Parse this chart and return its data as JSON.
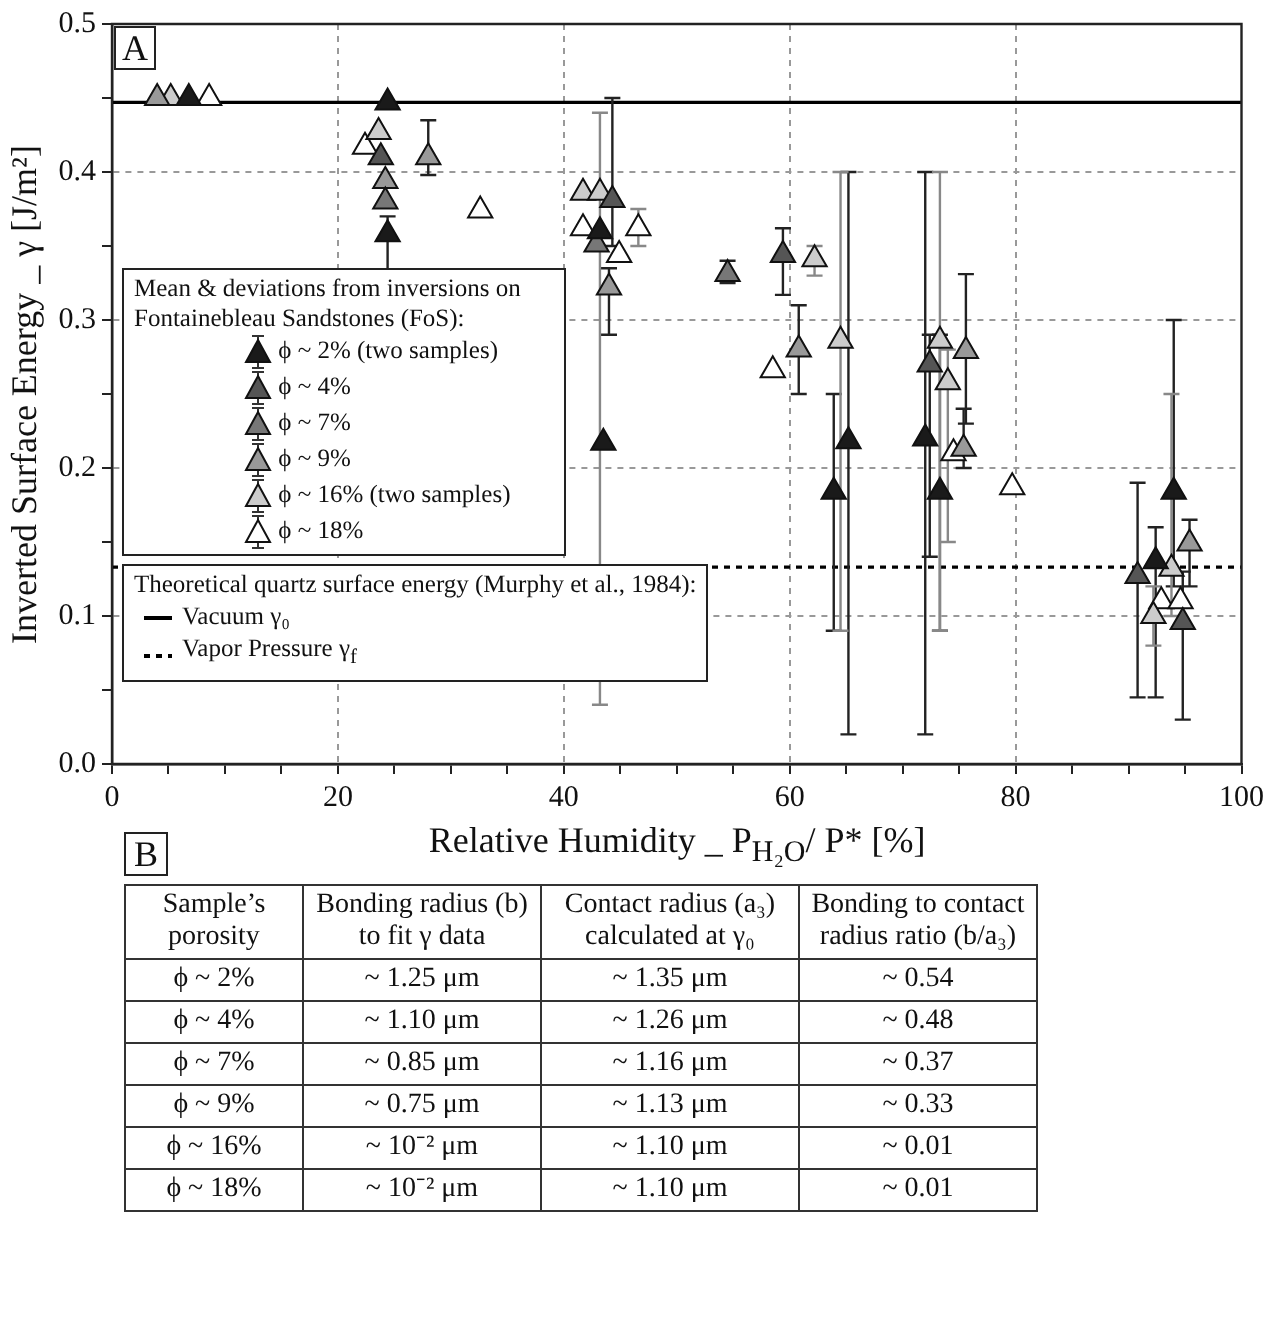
{
  "chart_data": [
    {
      "type": "scatter",
      "xlabel": "Relative Humidity _ P$_{H₂O}$/ P* [%]",
      "ylabel": "Inverted Surface Energy _ γ [J/m²]",
      "legend_title": "Mean & deviations from inversions on Fontainebleau Sandstones (FoS):",
      "legend": "bottom left",
      "marker": "triangle",
      "grid": true,
      "annotations": [
        "A",
        "Theoretical quartz surface energy (Murphy et al., 1984):"
      ],
      "xlim": [
        0,
        100
      ],
      "ylim": [
        0,
        0.5
      ],
      "xticks": [
        0,
        {
          "value": 5,
          "label": null
        },
        {
          "value": 10,
          "label": null
        },
        {
          "value": 15,
          "label": null
        },
        20,
        {
          "value": 25,
          "label": null
        },
        {
          "value": 30,
          "label": null
        },
        {
          "value": 35,
          "label": null
        },
        40,
        {
          "value": 45,
          "label": null
        },
        {
          "value": 50,
          "label": null
        },
        {
          "value": 55,
          "label": null
        },
        60,
        {
          "value": 65,
          "label": null
        },
        {
          "value": 70,
          "label": null
        },
        {
          "value": 75,
          "label": null
        },
        80,
        {
          "value": 85,
          "label": null
        },
        {
          "value": 90,
          "label": null
        },
        {
          "value": 95,
          "label": null
        },
        100
      ],
      "yticks": [
        {
          "value": 0,
          "label": "0.0"
        },
        {
          "value": 0.05,
          "label": null
        },
        0.1,
        {
          "value": 0.15,
          "label": null
        },
        0.2,
        {
          "value": 0.25,
          "label": null
        },
        0.3,
        {
          "value": 0.35,
          "label": null
        },
        0.4,
        {
          "value": 0.45,
          "label": null
        },
        0.5
      ],
      "ref_lines": [
        {
          "axis": "y",
          "value": 0.447,
          "label": "Vacuum γ₀",
          "color": "#000000",
          "line_style": "solid"
        },
        {
          "axis": "y",
          "value": 0.133,
          "label": "Vapor Pressure γ$_{f}$",
          "color": "#000000",
          "line_style": "dotted"
        }
      ],
      "series": [
        {
          "name": "ϕ ~ 2% (two samples)",
          "color": "#1a1a1a",
          "x": [
            6.8,
            24.4,
            24.4,
            43.2,
            43.5,
            63.9,
            65.2,
            72,
            73.3,
            92.4,
            94
          ],
          "values": [
            0.45,
            0.447,
            0.358,
            0.36,
            0.217,
            0.184,
            0.218,
            0.22,
            0.184,
            0.137,
            0.184
          ],
          "errors": [
            null,
            null,
            [
              0.3,
              0.37
            ],
            null,
            null,
            [
              0.09,
              0.25
            ],
            [
              0.02,
              0.4
            ],
            [
              0.02,
              0.4
            ],
            [
              0.09,
              0.29
            ],
            [
              0.045,
              0.16
            ],
            [
              0.12,
              0.3
            ]
          ]
        },
        {
          "name": "ϕ ~ 4%",
          "color": "#555555",
          "x": [
            23.8,
            44.3,
            59.4,
            72.4,
            90.8,
            94.8
          ],
          "values": [
            0.41,
            0.381,
            0.344,
            0.27,
            0.127,
            0.096
          ],
          "errors": [
            null,
            [
              0.35,
              0.45
            ],
            [
              0.317,
              0.362
            ],
            [
              0.14,
              0.29
            ],
            [
              0.045,
              0.19
            ],
            [
              0.03,
              0.13
            ]
          ]
        },
        {
          "name": "ϕ ~ 7%",
          "color": "#777777",
          "x": [
            24.2,
            42.9,
            54.5
          ],
          "values": [
            0.38,
            0.351,
            0.331
          ],
          "errors": [
            null,
            null,
            [
              0.325,
              0.34
            ]
          ]
        },
        {
          "name": "ϕ ~ 9%",
          "color": "#999999",
          "x": [
            4,
            24.2,
            28,
            44,
            60.8,
            75.6,
            75.4,
            95.4
          ],
          "values": [
            0.45,
            0.394,
            0.41,
            0.322,
            0.28,
            0.279,
            0.213,
            0.149
          ],
          "errors": [
            null,
            null,
            [
              0.398,
              0.435
            ],
            [
              0.29,
              0.335
            ],
            [
              0.25,
              0.31
            ],
            [
              0.23,
              0.331
            ],
            [
              0.2,
              0.24
            ],
            [
              0.12,
              0.165
            ]
          ]
        },
        {
          "name": "ϕ ~ 16% (two samples)",
          "color": "#cccccc",
          "x": [
            5.2,
            23.6,
            41.7,
            43.2,
            62.2,
            64.5,
            73.3,
            74,
            92.2,
            93.8
          ],
          "values": [
            0.45,
            0.427,
            0.386,
            0.386,
            0.341,
            0.286,
            0.286,
            0.258,
            0.1,
            0.132
          ],
          "errors": [
            null,
            null,
            null,
            [
              0.04,
              0.44
            ],
            [
              0.33,
              0.35
            ],
            [
              0.09,
              0.4
            ],
            [
              0.09,
              0.4
            ],
            [
              0.15,
              0.28
            ],
            [
              0.08,
              0.12
            ],
            [
              0.1,
              0.25
            ]
          ]
        },
        {
          "name": "ϕ ~ 18%",
          "color": "#ffffff",
          "x": [
            8.6,
            22.4,
            32.6,
            41.7,
            44.9,
            46.6,
            58.5,
            74.5,
            79.7,
            92.9,
            94.6
          ],
          "values": [
            0.45,
            0.417,
            0.374,
            0.362,
            0.344,
            0.362,
            0.266,
            0.21,
            0.187,
            0.11,
            0.11
          ],
          "errors": [
            null,
            null,
            null,
            null,
            null,
            [
              0.35,
              0.375
            ],
            null,
            null,
            null,
            null,
            null
          ]
        }
      ]
    },
    {
      "type": "other",
      "title": "B",
      "annotations": [
        "Sample’s porosity",
        "Bonding radius (b) to fit γ data",
        "Contact radius (a₃) calculated at γ₀",
        "Bonding to contact radius ratio (b/a₃)",
        "ϕ ~ 2%",
        "~ 1.25 μm",
        "~ 1.35 μm",
        "~ 0.54",
        "ϕ ~ 4%",
        "~ 1.10 μm",
        "~ 1.26 μm",
        "~ 0.48",
        "ϕ ~ 7%",
        "~ 0.85 μm",
        "~ 1.16 μm",
        "~ 0.37",
        "ϕ ~ 9%",
        "~ 0.75 μm",
        "~ 1.13 μm",
        "~ 0.33",
        "ϕ ~ 16%",
        "~ 10⁻² μm",
        "~ 1.10 μm",
        "~ 0.01",
        "ϕ ~ 18%",
        "~ 10⁻² μm",
        "~ 1.10 μm",
        "~ 0.01"
      ]
    }
  ]
}
